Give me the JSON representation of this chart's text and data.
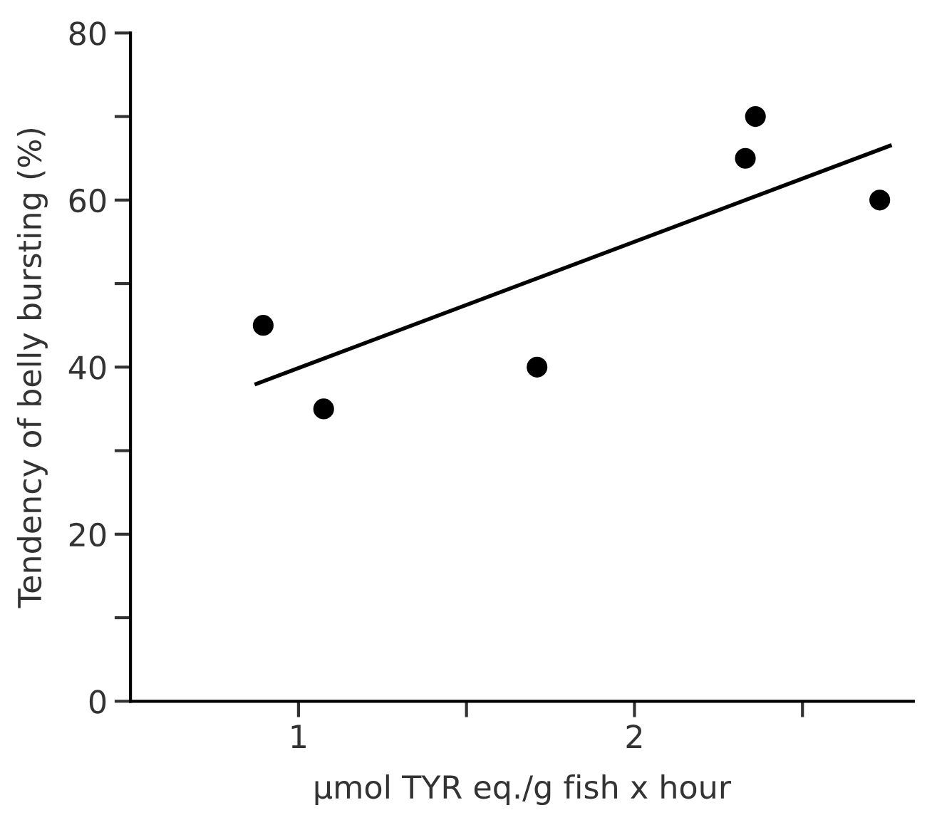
{
  "chart_data": {
    "type": "scatter",
    "xlabel": "µmol TYR eq./g fish x hour",
    "ylabel": "Tendency of belly bursting (%)",
    "x": [
      0.895,
      1.075,
      1.71,
      2.33,
      2.36,
      2.73
    ],
    "series": [
      {
        "color": "#000000",
        "marker": "circle",
        "values": [
          45,
          35,
          40,
          65,
          70,
          60
        ]
      },
      {
        "type": "line",
        "color": "#000000",
        "x": [
          0.875,
          2.76
        ],
        "values": [
          38,
          66.5
        ],
        "line_style": "solid",
        "marker": "none"
      }
    ],
    "xlim": [
      0.5,
      2.83
    ],
    "ylim": [
      0,
      80
    ],
    "xticks": [
      1,
      {
        "value": 1.5,
        "label": null
      },
      2,
      {
        "value": 2.5,
        "label": null
      }
    ],
    "yticks": [
      0,
      {
        "value": 10,
        "label": null
      },
      20,
      {
        "value": 30,
        "label": null
      },
      40,
      {
        "value": 50,
        "label": null
      },
      60,
      {
        "value": 70,
        "label": null
      },
      80
    ],
    "grid": false,
    "legend": false
  }
}
